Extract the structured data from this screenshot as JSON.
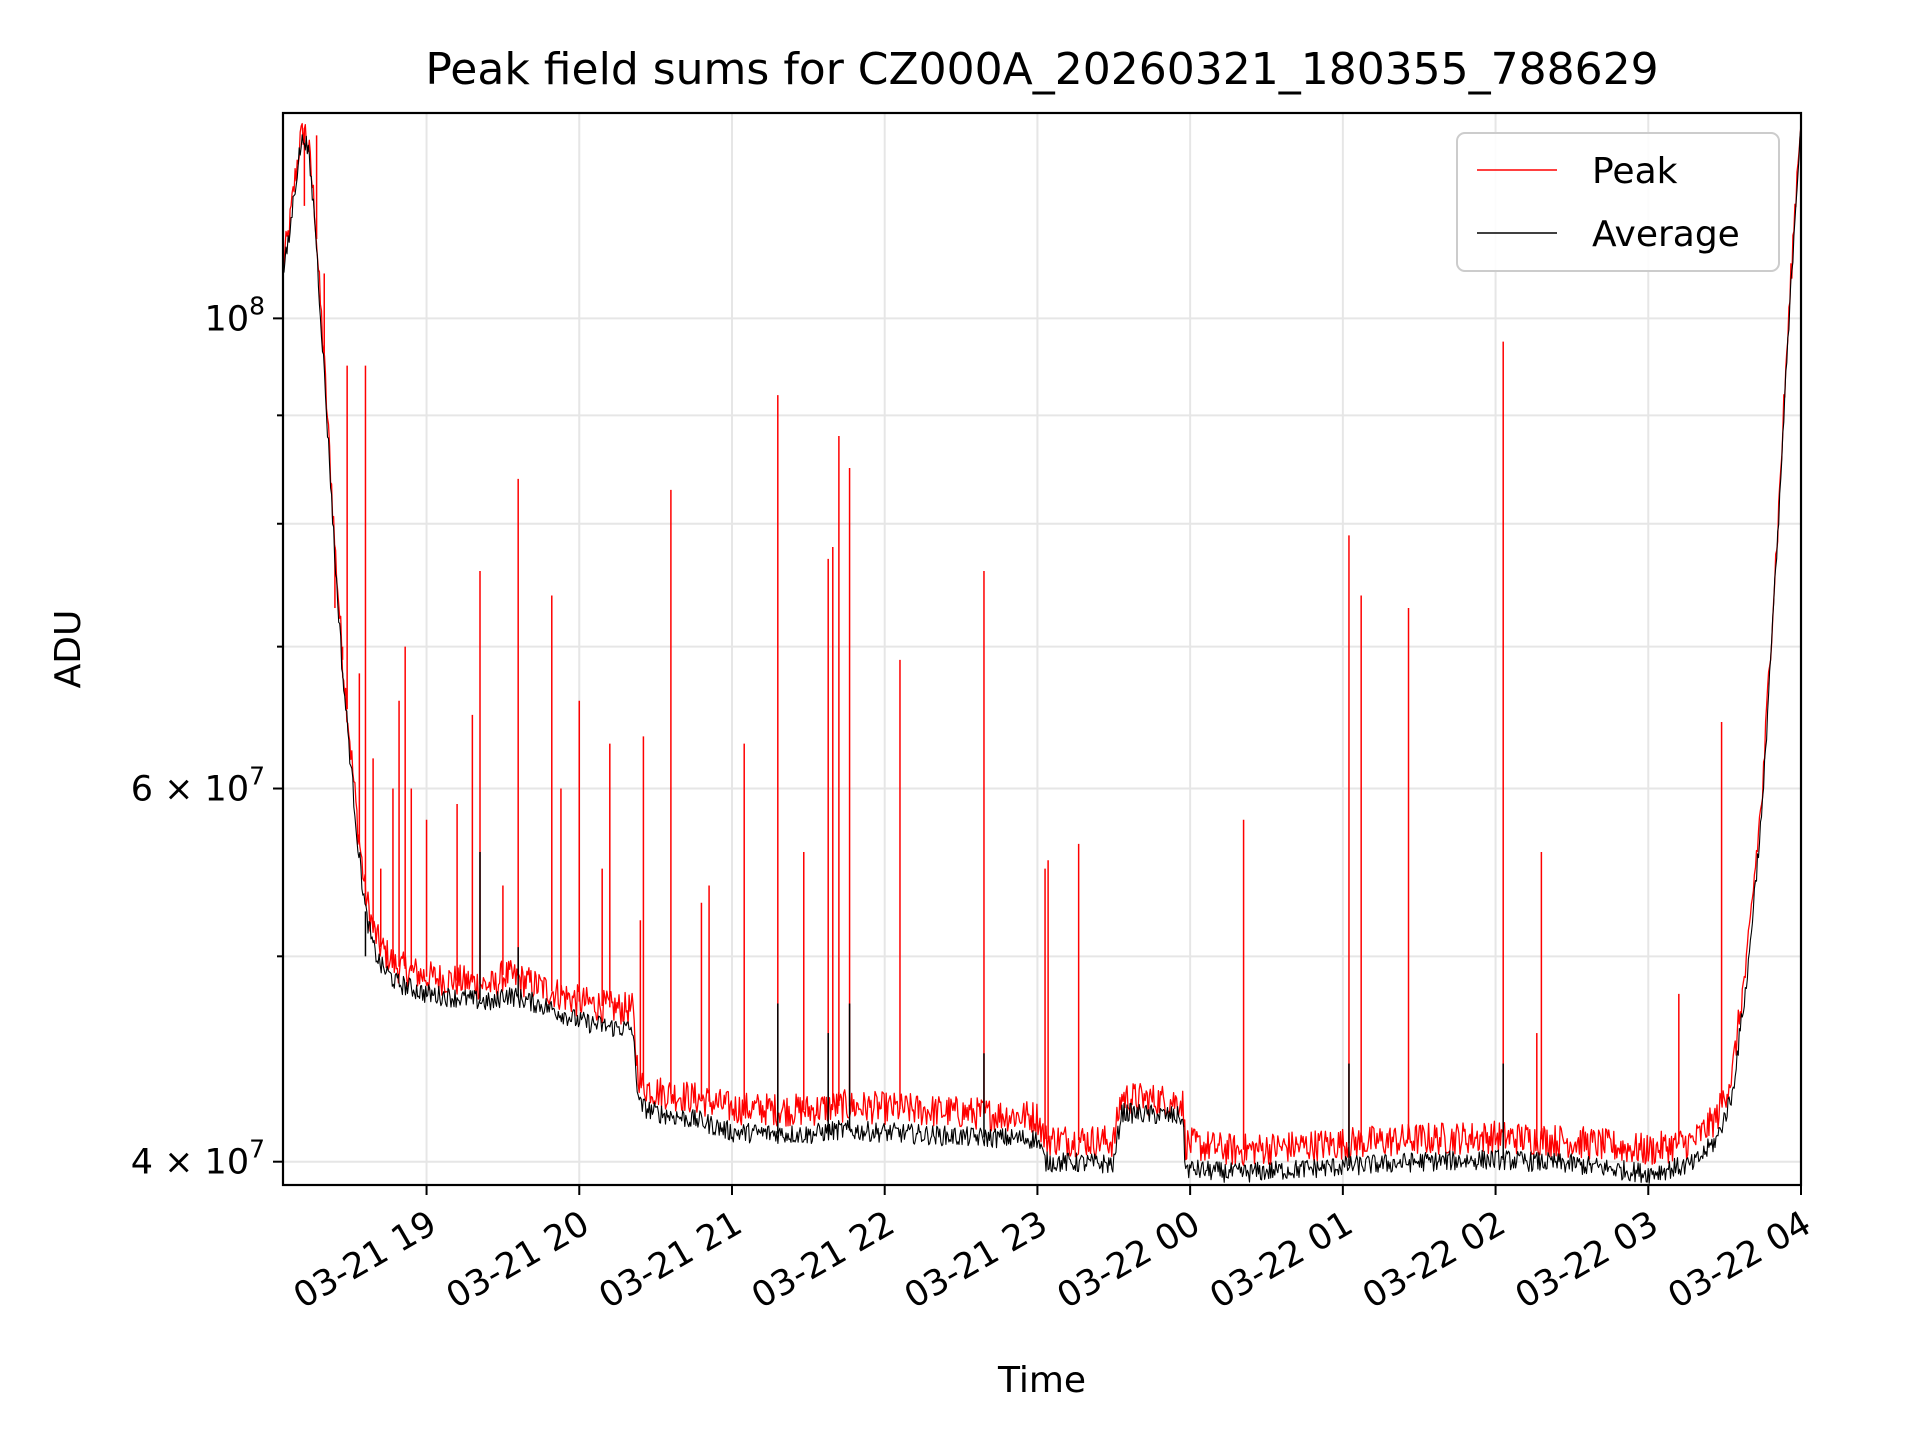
{
  "chart_data": {
    "type": "line",
    "title": "Peak field sums for CZ000A_20260321_180355_788629",
    "xlabel": "Time",
    "ylabel": "ADU",
    "yscale": "log",
    "xlim": [
      18.06,
      28.0
    ],
    "ylim": [
      39000000,
      125000000
    ],
    "x_ticks": [
      {
        "value": 19,
        "label": "03-21 19"
      },
      {
        "value": 20,
        "label": "03-21 20"
      },
      {
        "value": 21,
        "label": "03-21 21"
      },
      {
        "value": 22,
        "label": "03-21 22"
      },
      {
        "value": 23,
        "label": "03-21 23"
      },
      {
        "value": 24,
        "label": "03-22 00"
      },
      {
        "value": 25,
        "label": "03-22 01"
      },
      {
        "value": 26,
        "label": "03-22 02"
      },
      {
        "value": 27,
        "label": "03-22 03"
      },
      {
        "value": 28,
        "label": "03-22 04"
      }
    ],
    "y_major_ticks": [
      {
        "value": 40000000,
        "base": "4 × 10",
        "exp": "7"
      },
      {
        "value": 60000000,
        "base": "6 × 10",
        "exp": "7"
      },
      {
        "value": 100000000,
        "base": "10",
        "exp": "8"
      }
    ],
    "y_minor_ticks": [
      50000000,
      70000000,
      80000000,
      90000000
    ],
    "legend": {
      "position": "upper right"
    },
    "series": [
      {
        "name": "Peak",
        "color": "#ff0000",
        "points": [
          [
            18.06,
            106000000
          ],
          [
            18.1,
            110000000
          ],
          [
            18.13,
            115000000
          ],
          [
            18.17,
            121000000
          ],
          [
            18.2,
            123000000
          ],
          [
            18.23,
            120000000
          ],
          [
            18.27,
            112000000
          ],
          [
            18.3,
            103000000
          ],
          [
            18.35,
            90000000
          ],
          [
            18.4,
            78000000
          ],
          [
            18.45,
            69000000
          ],
          [
            18.5,
            63000000
          ],
          [
            18.55,
            57500000
          ],
          [
            18.6,
            53500000
          ],
          [
            18.65,
            51500000
          ],
          [
            18.7,
            50500000
          ],
          [
            18.8,
            49500000
          ],
          [
            19.0,
            48900000
          ],
          [
            19.3,
            48600000
          ],
          [
            19.45,
            48400000
          ],
          [
            19.5,
            49000000
          ],
          [
            19.6,
            48800000
          ],
          [
            19.8,
            48200000
          ],
          [
            20.0,
            47600000
          ],
          [
            20.2,
            47300000
          ],
          [
            20.35,
            47200000
          ],
          [
            20.37,
            45000000
          ],
          [
            20.4,
            43500000
          ],
          [
            20.5,
            43200000
          ],
          [
            20.8,
            42800000
          ],
          [
            21.0,
            42400000
          ],
          [
            21.5,
            42300000
          ],
          [
            21.7,
            42500000
          ],
          [
            22.0,
            42400000
          ],
          [
            22.5,
            42200000
          ],
          [
            23.0,
            42000000
          ],
          [
            23.05,
            41000000
          ],
          [
            23.5,
            40900000
          ],
          [
            23.55,
            42900000
          ],
          [
            23.95,
            42700000
          ],
          [
            23.97,
            40800000
          ],
          [
            24.3,
            40500000
          ],
          [
            25.0,
            40800000
          ],
          [
            25.5,
            41000000
          ],
          [
            26.0,
            41100000
          ],
          [
            26.5,
            40900000
          ],
          [
            27.0,
            40500000
          ],
          [
            27.3,
            40900000
          ],
          [
            27.45,
            42000000
          ],
          [
            27.55,
            44000000
          ],
          [
            27.65,
            50000000
          ],
          [
            27.75,
            60000000
          ],
          [
            27.85,
            80000000
          ],
          [
            27.92,
            100000000
          ],
          [
            28.0,
            125000000
          ]
        ],
        "spikes": [
          [
            18.2,
            113000000
          ],
          [
            18.28,
            122000000
          ],
          [
            18.33,
            105000000
          ],
          [
            18.4,
            73000000
          ],
          [
            18.45,
            70000000
          ],
          [
            18.48,
            95000000
          ],
          [
            18.5,
            63000000
          ],
          [
            18.56,
            68000000
          ],
          [
            18.6,
            95000000
          ],
          [
            18.65,
            62000000
          ],
          [
            18.7,
            55000000
          ],
          [
            18.78,
            60000000
          ],
          [
            18.82,
            66000000
          ],
          [
            18.86,
            70000000
          ],
          [
            18.9,
            60000000
          ],
          [
            19.0,
            58000000
          ],
          [
            19.2,
            59000000
          ],
          [
            19.3,
            65000000
          ],
          [
            19.35,
            76000000
          ],
          [
            19.5,
            54000000
          ],
          [
            19.6,
            84000000
          ],
          [
            19.82,
            74000000
          ],
          [
            19.88,
            60000000
          ],
          [
            20.0,
            66000000
          ],
          [
            20.15,
            55000000
          ],
          [
            20.2,
            63000000
          ],
          [
            20.4,
            52000000
          ],
          [
            20.42,
            63500000
          ],
          [
            20.6,
            83000000
          ],
          [
            20.8,
            53000000
          ],
          [
            20.85,
            54000000
          ],
          [
            21.08,
            63000000
          ],
          [
            21.3,
            92000000
          ],
          [
            21.47,
            56000000
          ],
          [
            21.63,
            77000000
          ],
          [
            21.66,
            78000000
          ],
          [
            21.7,
            88000000
          ],
          [
            21.77,
            85000000
          ],
          [
            22.1,
            69000000
          ],
          [
            22.65,
            76000000
          ],
          [
            23.05,
            55000000
          ],
          [
            23.07,
            55500000
          ],
          [
            23.27,
            56500000
          ],
          [
            24.35,
            58000000
          ],
          [
            25.04,
            79000000
          ],
          [
            25.12,
            74000000
          ],
          [
            25.43,
            73000000
          ],
          [
            26.05,
            97500000
          ],
          [
            26.27,
            46000000
          ],
          [
            26.3,
            56000000
          ],
          [
            27.2,
            48000000
          ],
          [
            27.48,
            64500000
          ]
        ]
      },
      {
        "name": "Average",
        "color": "#000000",
        "points": [
          [
            18.06,
            105000000
          ],
          [
            18.1,
            109000000
          ],
          [
            18.13,
            114000000
          ],
          [
            18.17,
            120000000
          ],
          [
            18.2,
            122000000
          ],
          [
            18.23,
            119000000
          ],
          [
            18.27,
            111000000
          ],
          [
            18.3,
            102000000
          ],
          [
            18.35,
            89000000
          ],
          [
            18.4,
            77000000
          ],
          [
            18.45,
            68000000
          ],
          [
            18.5,
            62000000
          ],
          [
            18.55,
            56500000
          ],
          [
            18.6,
            52500000
          ],
          [
            18.65,
            50500000
          ],
          [
            18.7,
            49500000
          ],
          [
            18.8,
            48600000
          ],
          [
            19.0,
            48000000
          ],
          [
            19.3,
            47700000
          ],
          [
            19.45,
            47500000
          ],
          [
            19.5,
            48000000
          ],
          [
            19.6,
            47800000
          ],
          [
            19.8,
            47300000
          ],
          [
            20.0,
            46600000
          ],
          [
            20.2,
            46300000
          ],
          [
            20.35,
            46200000
          ],
          [
            20.37,
            44000000
          ],
          [
            20.4,
            42500000
          ],
          [
            20.5,
            42200000
          ],
          [
            20.8,
            41800000
          ],
          [
            21.0,
            41300000
          ],
          [
            21.5,
            41200000
          ],
          [
            21.7,
            41400000
          ],
          [
            22.0,
            41300000
          ],
          [
            22.5,
            41100000
          ],
          [
            23.0,
            41000000
          ],
          [
            23.05,
            40000000
          ],
          [
            23.5,
            39900000
          ],
          [
            23.55,
            42200000
          ],
          [
            23.95,
            42000000
          ],
          [
            23.97,
            39700000
          ],
          [
            24.3,
            39500000
          ],
          [
            25.0,
            39800000
          ],
          [
            25.5,
            40000000
          ],
          [
            26.0,
            40100000
          ],
          [
            26.5,
            39900000
          ],
          [
            27.0,
            39500000
          ],
          [
            27.3,
            39900000
          ],
          [
            27.45,
            41000000
          ],
          [
            27.55,
            43000000
          ],
          [
            27.65,
            49000000
          ],
          [
            27.75,
            59000000
          ],
          [
            27.85,
            79000000
          ],
          [
            27.92,
            99000000
          ],
          [
            28.0,
            124000000
          ]
        ],
        "spikes": [
          [
            18.6,
            50000000
          ],
          [
            19.35,
            56000000
          ],
          [
            19.6,
            50500000
          ],
          [
            21.3,
            47500000
          ],
          [
            21.63,
            46000000
          ],
          [
            21.77,
            47500000
          ],
          [
            22.65,
            45000000
          ],
          [
            25.04,
            44500000
          ],
          [
            26.05,
            44500000
          ]
        ]
      }
    ]
  }
}
